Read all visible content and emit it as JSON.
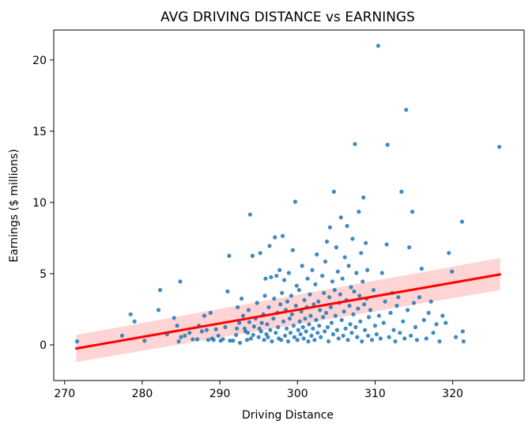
{
  "chart_data": {
    "type": "scatter",
    "title": "AVG DRIVING DISTANCE vs EARNINGS",
    "xlabel": "Driving Distance",
    "ylabel": "Earnings ($ millions)",
    "xlim": [
      268.6,
      329.2
    ],
    "ylim": [
      -2.5,
      22.1
    ],
    "xticks": [
      270,
      280,
      290,
      300,
      310,
      320
    ],
    "yticks": [
      0,
      5,
      10,
      15,
      20
    ],
    "grid": false,
    "colors": {
      "points": "#1f77b4",
      "regression_line": "#ff0000",
      "confidence_band": "#ffcccc"
    },
    "regression": {
      "x": [
        271.5,
        326.1
      ],
      "y": [
        -0.25,
        4.95
      ],
      "ci_lower": [
        -1.2,
        3.85
      ],
      "ci_upper": [
        0.7,
        6.1
      ]
    },
    "points": [
      [
        271.6,
        0.25
      ],
      [
        277.4,
        0.65
      ],
      [
        278.5,
        2.15
      ],
      [
        279.0,
        1.65
      ],
      [
        280.3,
        0.3
      ],
      [
        282.1,
        2.45
      ],
      [
        282.3,
        3.85
      ],
      [
        283.2,
        0.75
      ],
      [
        284.1,
        1.9
      ],
      [
        284.5,
        1.35
      ],
      [
        284.7,
        0.25
      ],
      [
        284.9,
        4.45
      ],
      [
        285.0,
        0.55
      ],
      [
        285.5,
        0.65
      ],
      [
        286.1,
        0.85
      ],
      [
        286.5,
        0.4
      ],
      [
        287.1,
        0.4
      ],
      [
        287.3,
        1.35
      ],
      [
        287.7,
        0.95
      ],
      [
        288.0,
        2.05
      ],
      [
        288.3,
        1.05
      ],
      [
        288.5,
        0.35
      ],
      [
        288.8,
        2.25
      ],
      [
        289.0,
        0.45
      ],
      [
        289.2,
        0.35
      ],
      [
        289.5,
        1.1
      ],
      [
        289.8,
        0.65
      ],
      [
        290.1,
        0.3
      ],
      [
        290.4,
        0.4
      ],
      [
        290.7,
        1.25
      ],
      [
        291.0,
        3.75
      ],
      [
        291.2,
        6.25
      ],
      [
        291.3,
        0.3
      ],
      [
        291.7,
        0.3
      ],
      [
        292.1,
        0.7
      ],
      [
        292.2,
        1.15
      ],
      [
        292.3,
        2.65
      ],
      [
        292.5,
        1.55
      ],
      [
        292.6,
        0.15
      ],
      [
        292.8,
        3.25
      ],
      [
        293.0,
        2.05
      ],
      [
        293.2,
        1.15
      ],
      [
        293.3,
        0.95
      ],
      [
        293.5,
        0.35
      ],
      [
        293.6,
        0.85
      ],
      [
        293.7,
        2.45
      ],
      [
        293.8,
        1.6
      ],
      [
        293.9,
        9.15
      ],
      [
        294.0,
        0.45
      ],
      [
        294.2,
        6.25
      ],
      [
        294.3,
        0.7
      ],
      [
        294.4,
        1.3
      ],
      [
        294.6,
        1.85
      ],
      [
        294.8,
        2.95
      ],
      [
        295.0,
        0.55
      ],
      [
        295.1,
        1.15
      ],
      [
        295.2,
        6.45
      ],
      [
        295.3,
        0.95
      ],
      [
        295.4,
        1.55
      ],
      [
        295.6,
        2.15
      ],
      [
        295.7,
        0.35
      ],
      [
        295.8,
        3.45
      ],
      [
        295.9,
        4.65
      ],
      [
        296.0,
        0.75
      ],
      [
        296.1,
        1.45
      ],
      [
        296.2,
        0.55
      ],
      [
        296.3,
        2.65
      ],
      [
        296.4,
        6.95
      ],
      [
        296.5,
        1.05
      ],
      [
        296.6,
        4.75
      ],
      [
        296.7,
        0.25
      ],
      [
        296.9,
        1.85
      ],
      [
        297.0,
        3.25
      ],
      [
        297.1,
        7.55
      ],
      [
        297.2,
        0.85
      ],
      [
        297.3,
        4.85
      ],
      [
        297.4,
        2.25
      ],
      [
        297.5,
        1.25
      ],
      [
        297.6,
        0.45
      ],
      [
        297.7,
        5.25
      ],
      [
        297.8,
        2.85
      ],
      [
        297.9,
        0.35
      ],
      [
        298.0,
        3.65
      ],
      [
        298.1,
        7.65
      ],
      [
        298.2,
        1.65
      ],
      [
        298.3,
        4.55
      ],
      [
        298.4,
        0.65
      ],
      [
        298.5,
        2.45
      ],
      [
        298.6,
        1.15
      ],
      [
        298.7,
        3.05
      ],
      [
        298.8,
        0.25
      ],
      [
        298.9,
        5.05
      ],
      [
        299.0,
        1.85
      ],
      [
        299.1,
        0.85
      ],
      [
        299.2,
        3.45
      ],
      [
        299.3,
        2.15
      ],
      [
        299.4,
        6.65
      ],
      [
        299.5,
        1.35
      ],
      [
        299.6,
        0.55
      ],
      [
        299.7,
        10.05
      ],
      [
        299.8,
        2.75
      ],
      [
        299.9,
        4.15
      ],
      [
        300.0,
        0.35
      ],
      [
        300.1,
        1.05
      ],
      [
        300.2,
        3.85
      ],
      [
        300.3,
        1.65
      ],
      [
        300.4,
        0.75
      ],
      [
        300.5,
        2.35
      ],
      [
        300.6,
        5.55
      ],
      [
        300.7,
        1.25
      ],
      [
        300.8,
        0.45
      ],
      [
        300.9,
        3.15
      ],
      [
        301.0,
        1.85
      ],
      [
        301.1,
        0.95
      ],
      [
        301.2,
        2.65
      ],
      [
        301.3,
        4.65
      ],
      [
        301.4,
        0.25
      ],
      [
        301.5,
        1.45
      ],
      [
        301.6,
        3.55
      ],
      [
        301.7,
        2.05
      ],
      [
        301.8,
        0.65
      ],
      [
        301.9,
        5.25
      ],
      [
        302.0,
        1.15
      ],
      [
        302.1,
        2.85
      ],
      [
        302.2,
        0.35
      ],
      [
        302.3,
        4.25
      ],
      [
        302.4,
        1.75
      ],
      [
        302.5,
        6.35
      ],
      [
        302.6,
        0.85
      ],
      [
        302.7,
        3.05
      ],
      [
        302.8,
        1.35
      ],
      [
        302.9,
        2.45
      ],
      [
        303.0,
        0.55
      ],
      [
        303.2,
        4.85
      ],
      [
        303.3,
        1.95
      ],
      [
        303.4,
        3.65
      ],
      [
        303.5,
        0.95
      ],
      [
        303.6,
        5.85
      ],
      [
        303.7,
        2.25
      ],
      [
        303.8,
        7.25
      ],
      [
        303.9,
        1.25
      ],
      [
        304.0,
        0.25
      ],
      [
        304.1,
        3.35
      ],
      [
        304.2,
        8.25
      ],
      [
        304.3,
        2.65
      ],
      [
        304.4,
        1.55
      ],
      [
        304.5,
        4.45
      ],
      [
        304.6,
        0.75
      ],
      [
        304.7,
        10.75
      ],
      [
        304.8,
        3.85
      ],
      [
        304.9,
        2.05
      ],
      [
        305.0,
        6.85
      ],
      [
        305.1,
        1.05
      ],
      [
        305.2,
        5.15
      ],
      [
        305.3,
        0.45
      ],
      [
        305.4,
        2.95
      ],
      [
        305.5,
        3.55
      ],
      [
        305.6,
        8.95
      ],
      [
        305.7,
        1.75
      ],
      [
        305.8,
        4.65
      ],
      [
        305.9,
        0.65
      ],
      [
        306.0,
        2.35
      ],
      [
        306.1,
        6.15
      ],
      [
        306.2,
        1.15
      ],
      [
        306.3,
        3.15
      ],
      [
        306.4,
        8.35
      ],
      [
        306.5,
        0.35
      ],
      [
        306.6,
        5.55
      ],
      [
        306.7,
        2.75
      ],
      [
        306.8,
        1.45
      ],
      [
        306.9,
        4.05
      ],
      [
        307.0,
        0.85
      ],
      [
        307.1,
        7.45
      ],
      [
        307.2,
        2.15
      ],
      [
        307.3,
        3.75
      ],
      [
        307.4,
        14.1
      ],
      [
        307.5,
        1.25
      ],
      [
        307.6,
        5.05
      ],
      [
        307.7,
        0.55
      ],
      [
        307.8,
        2.55
      ],
      [
        307.9,
        9.35
      ],
      [
        308.0,
        3.45
      ],
      [
        308.1,
        1.65
      ],
      [
        308.2,
        6.45
      ],
      [
        308.3,
        0.25
      ],
      [
        308.4,
        4.45
      ],
      [
        308.5,
        10.35
      ],
      [
        308.6,
        2.85
      ],
      [
        308.7,
        1.05
      ],
      [
        308.8,
        7.15
      ],
      [
        308.9,
        3.25
      ],
      [
        309.0,
        5.25
      ],
      [
        309.1,
        0.65
      ],
      [
        309.2,
        1.95
      ],
      [
        309.4,
        2.45
      ],
      [
        309.6,
        0.35
      ],
      [
        309.8,
        3.85
      ],
      [
        310.0,
        1.35
      ],
      [
        310.2,
        0.75
      ],
      [
        310.4,
        21.0
      ],
      [
        310.5,
        2.05
      ],
      [
        310.7,
        0.45
      ],
      [
        310.9,
        5.05
      ],
      [
        311.1,
        1.55
      ],
      [
        311.3,
        3.05
      ],
      [
        311.5,
        7.05
      ],
      [
        311.6,
        14.05
      ],
      [
        311.8,
        0.55
      ],
      [
        312.0,
        2.25
      ],
      [
        312.2,
        3.65
      ],
      [
        312.4,
        1.05
      ],
      [
        312.6,
        0.25
      ],
      [
        312.8,
        2.75
      ],
      [
        313.0,
        3.35
      ],
      [
        313.2,
        0.85
      ],
      [
        313.4,
        10.75
      ],
      [
        313.6,
        1.65
      ],
      [
        313.8,
        0.45
      ],
      [
        314.0,
        16.5
      ],
      [
        314.2,
        2.45
      ],
      [
        314.4,
        6.85
      ],
      [
        314.6,
        0.65
      ],
      [
        314.8,
        9.35
      ],
      [
        315.0,
        2.95
      ],
      [
        315.2,
        1.25
      ],
      [
        315.4,
        0.35
      ],
      [
        315.7,
        3.35
      ],
      [
        316.0,
        5.35
      ],
      [
        316.3,
        1.75
      ],
      [
        316.6,
        0.45
      ],
      [
        316.9,
        2.25
      ],
      [
        317.2,
        3.05
      ],
      [
        317.5,
        0.85
      ],
      [
        317.9,
        1.45
      ],
      [
        318.3,
        0.25
      ],
      [
        318.7,
        2.05
      ],
      [
        319.1,
        1.55
      ],
      [
        319.5,
        6.45
      ],
      [
        319.9,
        5.15
      ],
      [
        320.4,
        0.55
      ],
      [
        321.2,
        8.65
      ],
      [
        321.3,
        0.95
      ],
      [
        321.4,
        0.25
      ],
      [
        326.0,
        13.9
      ]
    ]
  }
}
